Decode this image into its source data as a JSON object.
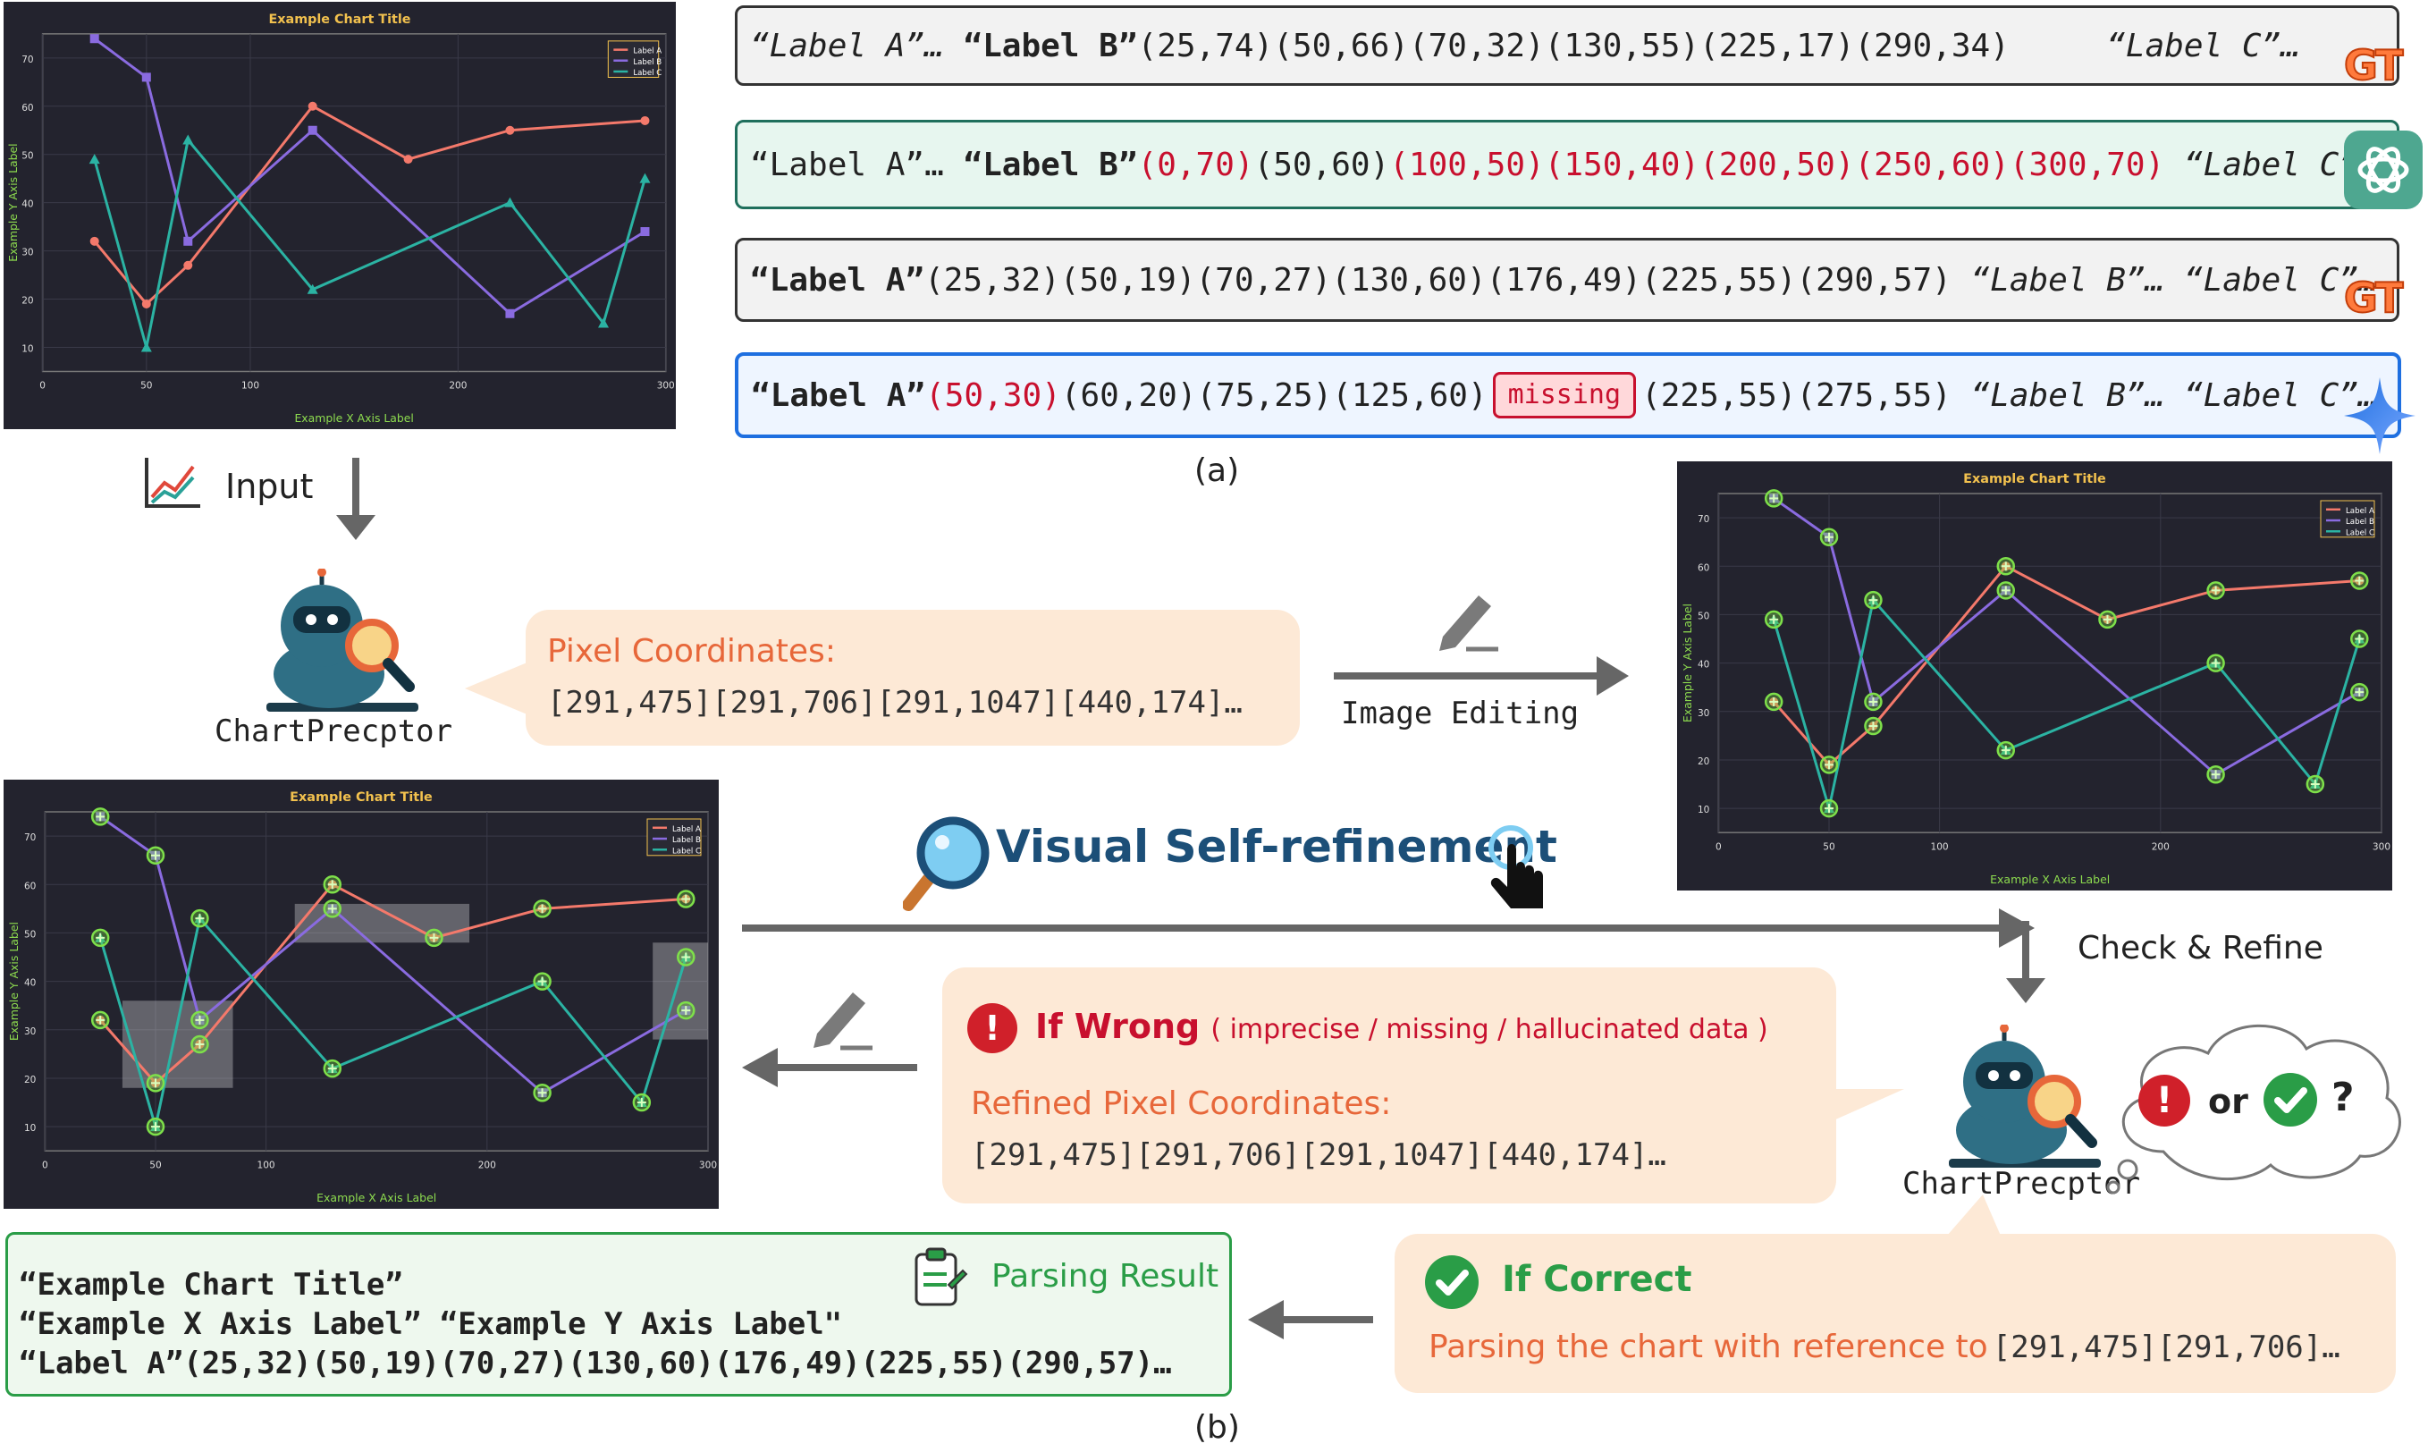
{
  "charts": {
    "title": "Example Chart Title",
    "xlabel": "Example X Axis Label",
    "ylabel": "Example Y Axis Label",
    "xticks": [
      "0",
      "50",
      "100",
      "200",
      "300"
    ],
    "yticks": [
      "10",
      "20",
      "30",
      "40",
      "50",
      "60",
      "70"
    ],
    "legend": [
      "Label A",
      "Label B",
      "Label C"
    ]
  },
  "chart_data": {
    "type": "line",
    "title": "Example Chart Title",
    "xlabel": "Example X Axis Label",
    "ylabel": "Example Y Axis Label",
    "xlim": [
      0,
      300
    ],
    "ylim": [
      5,
      75
    ],
    "grid": true,
    "legend_position": "top-right",
    "series": [
      {
        "name": "Label A",
        "color": "#f4796b",
        "marker": "circle",
        "x": [
          25,
          50,
          70,
          130,
          176,
          225,
          290
        ],
        "y": [
          32,
          19,
          27,
          60,
          49,
          55,
          57
        ]
      },
      {
        "name": "Label B",
        "color": "#8a6be0",
        "marker": "square",
        "x": [
          25,
          50,
          70,
          130,
          225,
          290
        ],
        "y": [
          74,
          66,
          32,
          55,
          17,
          34
        ]
      },
      {
        "name": "Label C",
        "color": "#2bb3a3",
        "marker": "triangle",
        "x": [
          25,
          50,
          70,
          130,
          225,
          270,
          290
        ],
        "y": [
          49,
          10,
          53,
          22,
          40,
          15,
          45
        ]
      }
    ]
  },
  "section_a": {
    "label": "(a)",
    "rows": [
      {
        "id": "gt1",
        "mark": "GT",
        "parts": [
          {
            "t": "“Label A”…",
            "s": "it"
          },
          {
            "t": " ",
            "s": ""
          },
          {
            "t": "“Label B”",
            "s": "b"
          },
          {
            "t": "(25,74)(50,66)(70,32)(130,55)(225,17)(290,34)",
            "s": ""
          },
          {
            "t": "     ",
            "s": ""
          },
          {
            "t": "“Label C”…",
            "s": "it"
          }
        ]
      },
      {
        "id": "gpt",
        "mark": "",
        "parts": [
          {
            "t": "“Label A”…",
            "s": ""
          },
          {
            "t": " ",
            "s": ""
          },
          {
            "t": "“Label B”",
            "s": "b"
          },
          {
            "t": "(0,70)",
            "s": "red"
          },
          {
            "t": "(50,60)",
            "s": ""
          },
          {
            "t": "(100,50)(150,40)(200,50)(250,60)(300,70)",
            "s": "red"
          },
          {
            "t": " ",
            "s": ""
          },
          {
            "t": "“Label C”…",
            "s": "it"
          }
        ]
      },
      {
        "id": "gt2",
        "mark": "GT",
        "parts": [
          {
            "t": "“Label A”",
            "s": "b"
          },
          {
            "t": "(25,32)(50,19)(70,27)(130,60)(176,49)(225,55)(290,57)",
            "s": ""
          },
          {
            "t": " ",
            "s": ""
          },
          {
            "t": "“Label B”…",
            "s": "it"
          },
          {
            "t": " ",
            "s": ""
          },
          {
            "t": "“Label C”…",
            "s": "it"
          }
        ]
      },
      {
        "id": "gem",
        "mark": "",
        "parts": [
          {
            "t": "“Label A”",
            "s": "b"
          },
          {
            "t": "(50,30)",
            "s": "red"
          },
          {
            "t": "(60,20)(75,25)(125,60)",
            "s": ""
          },
          {
            "t": "missing",
            "s": "missing"
          },
          {
            "t": "(225,55)(275,55)",
            "s": ""
          },
          {
            "t": " ",
            "s": ""
          },
          {
            "t": "“Label B”…",
            "s": "it"
          },
          {
            "t": " ",
            "s": ""
          },
          {
            "t": "“Label C”…",
            "s": "it"
          }
        ]
      }
    ]
  },
  "section_b": {
    "label": "(b)",
    "input_label": "Input",
    "perceptor_name": "ChartPrecptor",
    "pixel_coords_title": "Pixel Coordinates:",
    "pixel_coords": "[291,475][291,706][291,1047][440,174]…",
    "image_editing": "Image Editing",
    "visual_self_refinement": "Visual Self-refinement",
    "check_refine": "Check & Refine",
    "if_wrong": "If Wrong",
    "if_wrong_detail": "( imprecise / missing / hallucinated data )",
    "refined_title": "Refined Pixel Coordinates:",
    "refined_coords": "[291,475][291,706][291,1047][440,174]…",
    "or_text": "or",
    "question": "?",
    "if_correct": "If Correct",
    "parsing_ref": "Parsing the chart with reference to",
    "parsing_ref_coords": "[291,475][291,706]…",
    "parsing_result_title": "Parsing Result",
    "result_line1": "“Example Chart Title”",
    "result_line2": "“Example X Axis Label” “Example Y Axis Label\"",
    "result_line3": "“Label A”(25,32)(50,19)(70,27)(130,60)(176,49)(225,55)(290,57)…"
  }
}
